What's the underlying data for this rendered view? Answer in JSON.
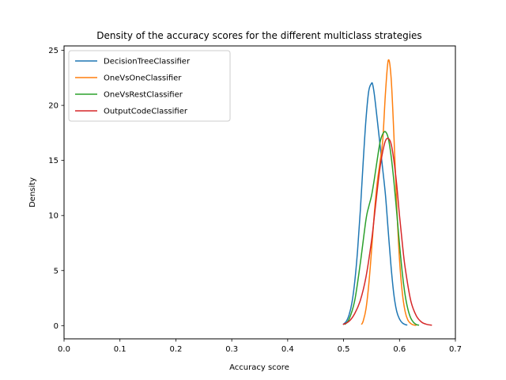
{
  "chart_data": {
    "type": "line",
    "title": "Density of the accuracy scores for the different multiclass strategies",
    "xlabel": "Accuracy score",
    "ylabel": "Density",
    "xlim": [
      0.0,
      0.7
    ],
    "ylim": [
      -1.2,
      25.4
    ],
    "xticks": [
      "0.0",
      "0.1",
      "0.2",
      "0.3",
      "0.4",
      "0.5",
      "0.6",
      "0.7"
    ],
    "yticks": [
      "0",
      "5",
      "10",
      "15",
      "20",
      "25"
    ],
    "grid": false,
    "legend_position": "top-left",
    "series": [
      {
        "name": "DecisionTreeClassifier",
        "color": "#1f77b4",
        "x": [
          0.499,
          0.505,
          0.51,
          0.515,
          0.52,
          0.525,
          0.53,
          0.535,
          0.54,
          0.545,
          0.55,
          0.552,
          0.555,
          0.56,
          0.565,
          0.57,
          0.575,
          0.58,
          0.585,
          0.59,
          0.595,
          0.6,
          0.605,
          0.61,
          0.614
        ],
        "y": [
          0.1,
          0.4,
          1.0,
          2.1,
          4.0,
          6.8,
          10.5,
          14.8,
          18.7,
          21.3,
          22.0,
          21.9,
          21.0,
          18.8,
          16.5,
          14.2,
          11.8,
          8.5,
          5.3,
          2.8,
          1.3,
          0.6,
          0.25,
          0.1,
          0.05
        ]
      },
      {
        "name": "OneVsOneClassifier",
        "color": "#ff7f0e",
        "x": [
          0.532,
          0.535,
          0.54,
          0.545,
          0.55,
          0.555,
          0.56,
          0.565,
          0.57,
          0.575,
          0.58,
          0.585,
          0.59,
          0.595,
          0.6,
          0.605,
          0.61,
          0.615,
          0.62,
          0.625,
          0.63
        ],
        "y": [
          0.1,
          0.4,
          1.5,
          3.7,
          6.8,
          10.2,
          12.9,
          14.8,
          16.8,
          21.2,
          24.1,
          22.5,
          17.3,
          11.0,
          6.0,
          3.0,
          1.3,
          0.5,
          0.2,
          0.06,
          0.02
        ]
      },
      {
        "name": "OneVsRestClassifier",
        "color": "#2ca02c",
        "x": [
          0.502,
          0.51,
          0.52,
          0.53,
          0.54,
          0.545,
          0.55,
          0.555,
          0.56,
          0.565,
          0.57,
          0.575,
          0.58,
          0.585,
          0.59,
          0.595,
          0.6,
          0.605,
          0.61,
          0.615,
          0.62,
          0.625,
          0.63,
          0.635
        ],
        "y": [
          0.1,
          0.6,
          2.3,
          5.7,
          9.6,
          10.8,
          11.8,
          13.3,
          15.0,
          16.6,
          17.4,
          17.6,
          17.0,
          15.4,
          13.1,
          10.3,
          7.4,
          4.8,
          2.8,
          1.5,
          0.7,
          0.3,
          0.1,
          0.04
        ]
      },
      {
        "name": "OutputCodeClassifier",
        "color": "#d62728",
        "x": [
          0.499,
          0.51,
          0.52,
          0.53,
          0.54,
          0.55,
          0.555,
          0.56,
          0.565,
          0.57,
          0.575,
          0.58,
          0.585,
          0.59,
          0.595,
          0.6,
          0.605,
          0.61,
          0.62,
          0.63,
          0.64,
          0.65,
          0.658
        ],
        "y": [
          0.1,
          0.4,
          1.1,
          2.3,
          4.4,
          7.7,
          9.9,
          12.2,
          14.3,
          15.8,
          16.8,
          17.0,
          16.5,
          15.0,
          12.8,
          10.0,
          7.5,
          5.3,
          2.3,
          0.9,
          0.3,
          0.1,
          0.04
        ]
      }
    ]
  }
}
